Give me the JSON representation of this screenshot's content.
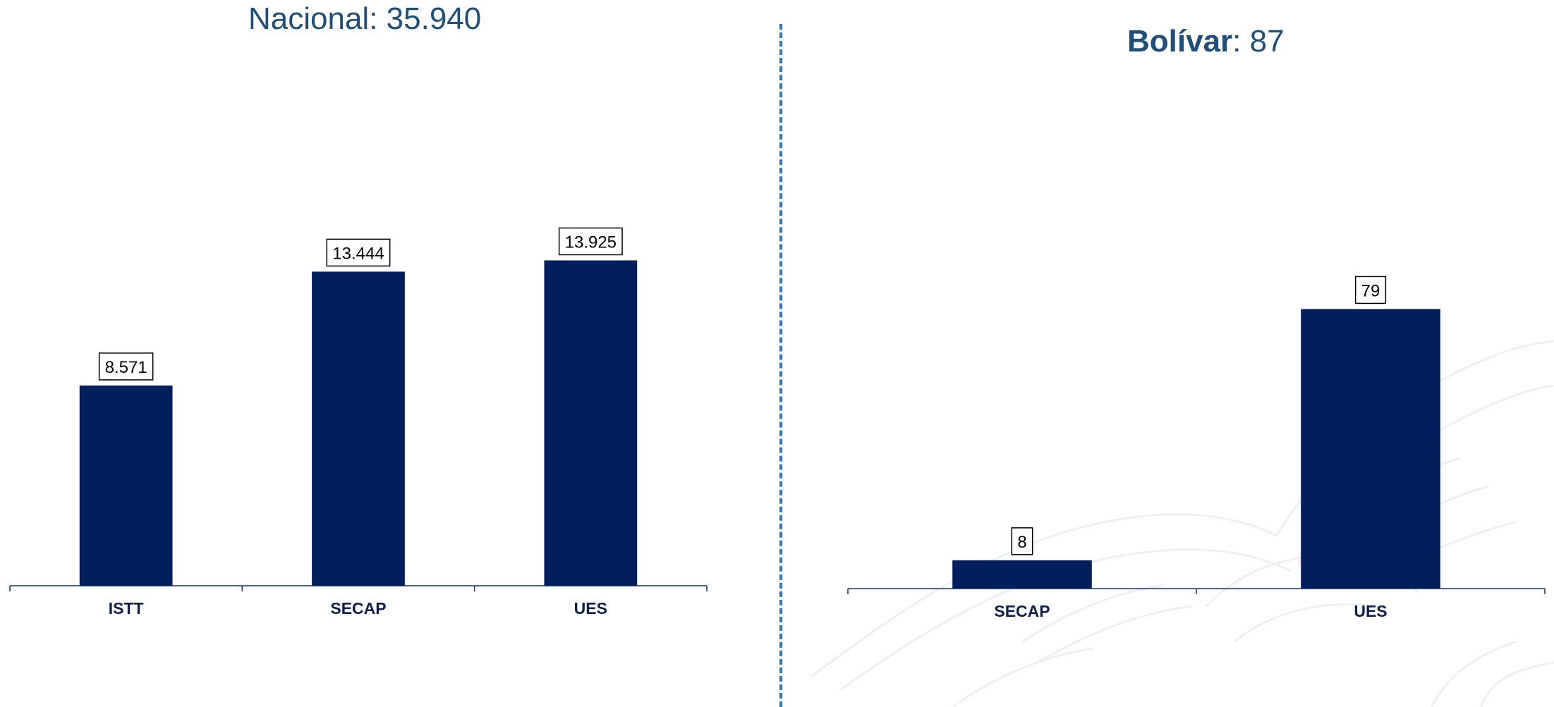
{
  "titles": {
    "left": {
      "label": "Nacional",
      "separator": ": ",
      "value": "35.940"
    },
    "right": {
      "label": "Bolívar",
      "separator": ": ",
      "value": "87"
    }
  },
  "colors": {
    "bar": "#001f5c",
    "title": "#1f4e79",
    "divider": "#2e75c6"
  },
  "chart_data": [
    {
      "type": "bar",
      "title": "Nacional: 35.940",
      "categories": [
        "ISTT",
        "SECAP",
        "UES"
      ],
      "values": [
        8571,
        13444,
        13925
      ],
      "value_labels": [
        "8.571",
        "13.444",
        "13.925"
      ],
      "ylim": [
        0,
        17800
      ],
      "grid": false
    },
    {
      "type": "bar",
      "title": "Bolívar: 87",
      "categories": [
        "SECAP",
        "UES"
      ],
      "values": [
        8,
        79
      ],
      "value_labels": [
        "8",
        "79"
      ],
      "ylim": [
        0,
        100
      ],
      "grid": false
    }
  ]
}
